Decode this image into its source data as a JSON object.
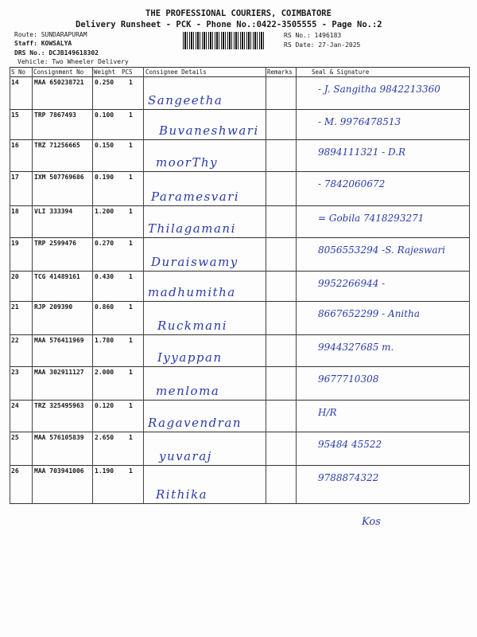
{
  "header": {
    "company": "THE PROFESSIONAL COURIERS, COIMBATORE",
    "subtitle": "Delivery Runsheet - PCK - Phone No.:0422-3505555 - Page No.:2",
    "route": "Route: SUNDARAPURAM",
    "staff": "Staff: KOWSALYA",
    "drs": "DRS No.: DCJB149618302",
    "vehicle": "Vehicle: Two Wheeler Delivery",
    "rs_no": "RS No.: 1496183",
    "rs_date": "RS Date: 27-Jan-2025"
  },
  "columns": {
    "sno": "S No",
    "consignment": "Consignment No",
    "weight": "Weight",
    "pcs": "PCS",
    "consignee": "Consignee Details",
    "remarks": "Remarks",
    "seal": "Seal & Signature"
  },
  "rows": [
    {
      "sno": "14",
      "cn": "MAA 650238721",
      "wt": "0.250",
      "pcs": "1",
      "name": "Sangeetha",
      "sig": "- J. Sangitha 9842213360"
    },
    {
      "sno": "15",
      "cn": "TRP 7867493",
      "wt": "0.100",
      "pcs": "1",
      "name": "Buvaneshwari",
      "sig": "- M. 9976478513"
    },
    {
      "sno": "16",
      "cn": "TRZ 71256665",
      "wt": "0.150",
      "pcs": "1",
      "name": "moorThy",
      "sig": "9894111321 - D.R"
    },
    {
      "sno": "17",
      "cn": "IXM 507769686",
      "wt": "0.190",
      "pcs": "1",
      "name": "Paramesvari",
      "sig": "- 7842060672"
    },
    {
      "sno": "18",
      "cn": "VLI 333394",
      "wt": "1.200",
      "pcs": "1",
      "name": "Thilagamani",
      "sig": "= Gobila 7418293271"
    },
    {
      "sno": "19",
      "cn": "TRP 2599476",
      "wt": "0.270",
      "pcs": "1",
      "name": "Duraiswamy",
      "sig": "8056553294 -S. Rajeswari"
    },
    {
      "sno": "20",
      "cn": "TCG 41489161",
      "wt": "0.430",
      "pcs": "1",
      "name": "madhumitha",
      "sig": "9952266944 -"
    },
    {
      "sno": "21",
      "cn": "RJP 209390",
      "wt": "0.860",
      "pcs": "1",
      "name": "Ruckmani",
      "sig": "8667652299 - Anitha"
    },
    {
      "sno": "22",
      "cn": "MAA 576411969",
      "wt": "1.780",
      "pcs": "1",
      "name": "Iyyappan",
      "sig": "9944327685 m."
    },
    {
      "sno": "23",
      "cn": "MAA 302911127",
      "wt": "2.000",
      "pcs": "1",
      "name": "menloma",
      "sig": "9677710308"
    },
    {
      "sno": "24",
      "cn": "TRZ 325495963",
      "wt": "0.120",
      "pcs": "1",
      "name": "Ragavendran",
      "sig": "H/R"
    },
    {
      "sno": "25",
      "cn": "MAA 576105839",
      "wt": "2.650",
      "pcs": "1",
      "name": "yuvaraj",
      "sig": "95484 45522"
    },
    {
      "sno": "26",
      "cn": "MAA 703941006",
      "wt": "1.190",
      "pcs": "1",
      "name": "Rithika",
      "sig": "9788874322"
    }
  ],
  "footer_initials": "Kos"
}
